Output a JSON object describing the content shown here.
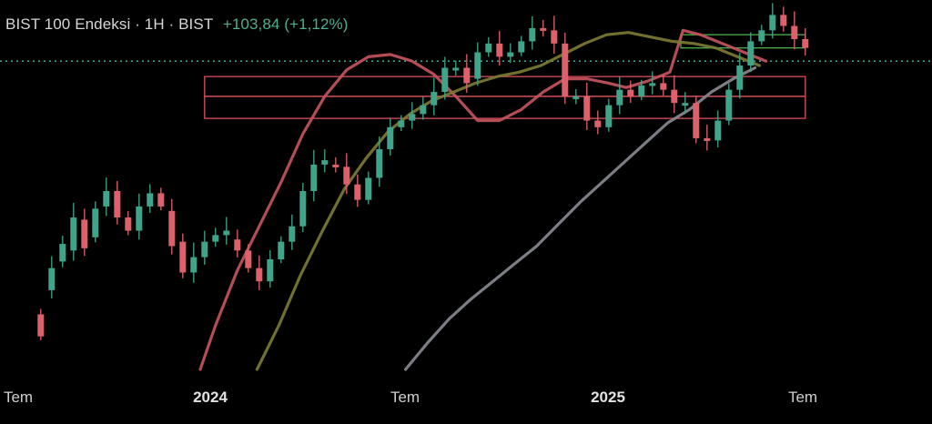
{
  "header": {
    "symbol_line": "BIST 100 Endeksi · 1H · BIST",
    "change": "+103,84 (+1,12%)"
  },
  "colors": {
    "background": "#000000",
    "up": "#3fa58a",
    "down": "#e0606a",
    "ma_short": "#c3545c",
    "ma_mid": "#7b7a33",
    "ma_long": "#85898f",
    "zone_red": "#d8505a",
    "zone_green": "#4caf50",
    "last_price_line": "#3aa192"
  },
  "chart_data": {
    "type": "candlestick",
    "title": "BIST 100 Endeksi · 1H · BIST",
    "x_ticks": [
      {
        "label": "Tem",
        "bold": false
      },
      {
        "label": "2024",
        "bold": true
      },
      {
        "label": "Tem",
        "bold": false
      },
      {
        "label": "2025",
        "bold": true
      },
      {
        "label": "Tem",
        "bold": false
      }
    ],
    "candles": [
      [
        2,
        25,
        15
      ],
      [
        7,
        36,
        46
      ],
      [
        12,
        49,
        57
      ],
      [
        17,
        54,
        69
      ],
      [
        22,
        68,
        55
      ],
      [
        27,
        60,
        73
      ],
      [
        32,
        74,
        81
      ],
      [
        37,
        81,
        69
      ],
      [
        42,
        69,
        63
      ],
      [
        47,
        63,
        74
      ],
      [
        52,
        74,
        80
      ],
      [
        57,
        80,
        74
      ],
      [
        62,
        72,
        56
      ],
      [
        67,
        58,
        44
      ],
      [
        72,
        44,
        51
      ],
      [
        77,
        51,
        58
      ],
      [
        82,
        58,
        61
      ],
      [
        87,
        61,
        63
      ],
      [
        92,
        59,
        54
      ],
      [
        97,
        54,
        46
      ],
      [
        102,
        46,
        40
      ],
      [
        107,
        40,
        50
      ],
      [
        112,
        50,
        58
      ],
      [
        117,
        58,
        65
      ],
      [
        122,
        65,
        81
      ],
      [
        127,
        81,
        93
      ],
      [
        132,
        93,
        95
      ],
      [
        137,
        93,
        92
      ],
      [
        142,
        92,
        84
      ],
      [
        147,
        84,
        77
      ],
      [
        152,
        77,
        87
      ],
      [
        157,
        87,
        100
      ],
      [
        162,
        100,
        110
      ],
      [
        167,
        110,
        113
      ],
      [
        172,
        113,
        116
      ],
      [
        177,
        116,
        120
      ],
      [
        182,
        120,
        126
      ],
      [
        187,
        126,
        137
      ],
      [
        192,
        137,
        137
      ],
      [
        197,
        137,
        130
      ],
      [
        202,
        132,
        144
      ],
      [
        207,
        144,
        148
      ],
      [
        212,
        148,
        142
      ],
      [
        217,
        142,
        144
      ],
      [
        222,
        144,
        149
      ],
      [
        227,
        149,
        155
      ],
      [
        232,
        155,
        154
      ],
      [
        237,
        154,
        148
      ],
      [
        242,
        148,
        124
      ],
      [
        247,
        124,
        124
      ],
      [
        252,
        124,
        113
      ],
      [
        257,
        113,
        110
      ],
      [
        262,
        110,
        120
      ],
      [
        267,
        120,
        127
      ],
      [
        272,
        127,
        124
      ],
      [
        277,
        124,
        129
      ],
      [
        282,
        129,
        130
      ],
      [
        287,
        130,
        127
      ],
      [
        292,
        127,
        121
      ],
      [
        297,
        121,
        121
      ],
      [
        302,
        121,
        105
      ],
      [
        307,
        105,
        104
      ],
      [
        312,
        104,
        113
      ],
      [
        317,
        113,
        127
      ],
      [
        322,
        127,
        138
      ],
      [
        327,
        138,
        149
      ],
      [
        332,
        149,
        154
      ],
      [
        337,
        154,
        161
      ],
      [
        342,
        161,
        156
      ],
      [
        347,
        156,
        150
      ],
      [
        352,
        150,
        146
      ]
    ],
    "zones": [
      {
        "from": 77,
        "to": 352,
        "high": 124,
        "low": 114,
        "color": "red"
      },
      {
        "from": 77,
        "to": 352,
        "high": 133,
        "low": 124,
        "color": "red"
      },
      {
        "from": 295,
        "to": 352,
        "high": 152,
        "low": 146,
        "color": "green"
      }
    ],
    "last_price": 140,
    "moving_averages": [
      {
        "points": [
          [
            75,
            0
          ],
          [
            82,
            20
          ],
          [
            92,
            45
          ],
          [
            102,
            65
          ],
          [
            112,
            85
          ],
          [
            122,
            107
          ],
          [
            132,
            124
          ],
          [
            142,
            136
          ],
          [
            152,
            142
          ],
          [
            162,
            143
          ],
          [
            172,
            140
          ],
          [
            182,
            134
          ],
          [
            192,
            124
          ],
          [
            202,
            113
          ],
          [
            212,
            113
          ],
          [
            222,
            118
          ],
          [
            232,
            126
          ],
          [
            242,
            132
          ],
          [
            252,
            132
          ],
          [
            262,
            130
          ],
          [
            270,
            128
          ],
          [
            280,
            131
          ],
          [
            290,
            135
          ],
          [
            296,
            154
          ],
          [
            304,
            152
          ],
          [
            314,
            148
          ],
          [
            324,
            144
          ],
          [
            334,
            140
          ]
        ]
      },
      {
        "points": [
          [
            101,
            0
          ],
          [
            111,
            20
          ],
          [
            121,
            43
          ],
          [
            131,
            63
          ],
          [
            141,
            82
          ],
          [
            151,
            96
          ],
          [
            161,
            108
          ],
          [
            171,
            116
          ],
          [
            181,
            122
          ],
          [
            191,
            126
          ],
          [
            201,
            130
          ],
          [
            211,
            133
          ],
          [
            221,
            135
          ],
          [
            231,
            138
          ],
          [
            241,
            143
          ],
          [
            251,
            148
          ],
          [
            261,
            152
          ],
          [
            271,
            153
          ],
          [
            281,
            151
          ],
          [
            291,
            149
          ],
          [
            301,
            148
          ],
          [
            311,
            146
          ],
          [
            321,
            142
          ],
          [
            331,
            138
          ]
        ]
      },
      {
        "points": [
          [
            169,
            0
          ],
          [
            179,
            12
          ],
          [
            189,
            23
          ],
          [
            199,
            32
          ],
          [
            209,
            40
          ],
          [
            219,
            48
          ],
          [
            229,
            56
          ],
          [
            239,
            66
          ],
          [
            249,
            76
          ],
          [
            259,
            85
          ],
          [
            269,
            94
          ],
          [
            279,
            103
          ],
          [
            289,
            112
          ],
          [
            299,
            118
          ],
          [
            309,
            126
          ],
          [
            319,
            132
          ],
          [
            329,
            137
          ]
        ]
      }
    ]
  }
}
